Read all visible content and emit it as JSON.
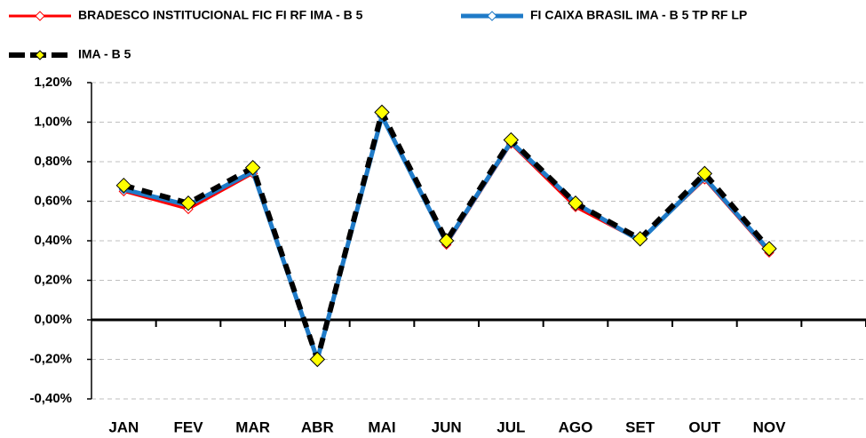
{
  "chart_data": {
    "type": "line",
    "categories": [
      "JAN",
      "FEV",
      "MAR",
      "ABR",
      "MAI",
      "JUN",
      "JUL",
      "AGO",
      "SET",
      "OUT",
      "NOV",
      null
    ],
    "series": [
      {
        "name": "BRADESCO INSTITUCIONAL FIC FI RF IMA - B 5",
        "color": "#ff0000",
        "marker_color": "#ffffff",
        "values": [
          0.65,
          0.56,
          0.74,
          -0.21,
          1.03,
          0.38,
          0.89,
          0.57,
          0.4,
          0.71,
          0.34,
          null
        ]
      },
      {
        "name": "FI CAIXA BRASIL IMA - B 5 TP RF LP",
        "color": "#1f7bc8",
        "marker_color": "#ffffff",
        "values": [
          0.66,
          0.58,
          0.75,
          -0.2,
          1.03,
          0.39,
          0.9,
          0.59,
          0.4,
          0.72,
          0.35,
          null
        ]
      },
      {
        "name": "IMA - B 5",
        "color": "#000000",
        "marker_color": "#ffff00",
        "dashed": true,
        "values": [
          0.68,
          0.59,
          0.77,
          -0.2,
          1.05,
          0.4,
          0.91,
          0.59,
          0.41,
          0.74,
          0.36,
          null
        ]
      }
    ],
    "ylim": [
      -0.4,
      1.2
    ],
    "yticks": [
      {
        "value": -0.4,
        "label": "-0,40%"
      },
      {
        "value": -0.2,
        "label": "-0,20%"
      },
      {
        "value": 0,
        "label": "0,00%"
      },
      {
        "value": 0.2,
        "label": "0,20%"
      },
      {
        "value": 0.4,
        "label": "0,40%"
      },
      {
        "value": 0.6,
        "label": "0,60%"
      },
      {
        "value": 0.8,
        "label": "0,80%"
      },
      {
        "value": 1.0,
        "label": "1,00%"
      },
      {
        "value": 1.2,
        "label": "1,20%"
      }
    ],
    "grid": true
  }
}
